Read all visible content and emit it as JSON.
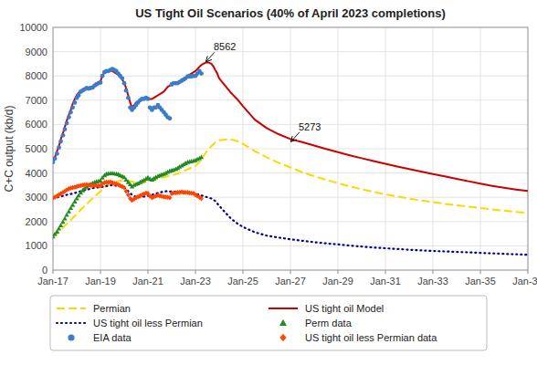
{
  "chart_data": {
    "type": "line",
    "title": "US Tight Oil Scenarios (40% of April 2023 completions)",
    "y_label": "C+C output (kb/d)",
    "xlim": [
      2017.0,
      2037.0
    ],
    "ylim": [
      0,
      10000
    ],
    "yticks": [
      0,
      1000,
      2000,
      3000,
      4000,
      5000,
      6000,
      7000,
      8000,
      9000,
      10000
    ],
    "xticks": [
      {
        "value": 2017,
        "label": "Jan-17"
      },
      {
        "value": 2019,
        "label": "Jan-19"
      },
      {
        "value": 2021,
        "label": "Jan-21"
      },
      {
        "value": 2023,
        "label": "Jan-23"
      },
      {
        "value": 2025,
        "label": "Jan-25"
      },
      {
        "value": 2027,
        "label": "Jan-27"
      },
      {
        "value": 2029,
        "label": "Jan-29"
      },
      {
        "value": 2031,
        "label": "Jan-31"
      },
      {
        "value": 2033,
        "label": "Jan-33"
      },
      {
        "value": 2035,
        "label": "Jan-35"
      },
      {
        "value": 2037,
        "label": "Jan-37"
      }
    ],
    "grid": true,
    "legend": "bottom",
    "series": [
      {
        "name": "Permian",
        "type": "line",
        "line_style": "dashed",
        "color": "#FFD700",
        "x": [
          2017.0,
          2017.17,
          2017.33,
          2017.5,
          2017.67,
          2017.83,
          2018.0,
          2018.17,
          2018.33,
          2018.5,
          2018.67,
          2018.83,
          2019.0,
          2019.17,
          2019.33,
          2019.5,
          2019.67,
          2019.83,
          2020.0,
          2020.17,
          2020.33,
          2020.5,
          2020.67,
          2020.83,
          2021.0,
          2021.17,
          2021.33,
          2021.5,
          2021.67,
          2021.83,
          2022.0,
          2022.17,
          2022.33,
          2022.5,
          2022.67,
          2022.83,
          2023.0,
          2023.17,
          2023.33,
          2023.5,
          2023.67,
          2023.83,
          2024.0,
          2024.25,
          2024.5,
          2024.75,
          2025.0,
          2025.5,
          2026.0,
          2026.5,
          2027.0,
          2027.5,
          2028.0,
          2028.5,
          2029.0,
          2029.5,
          2030.0,
          2030.5,
          2031.0,
          2031.5,
          2032.0,
          2032.5,
          2033.0,
          2033.5,
          2034.0,
          2034.5,
          2035.0,
          2035.5,
          2036.0,
          2036.5,
          2037.0
        ],
        "values": [
          1380,
          1500,
          1650,
          1820,
          1990,
          2150,
          2310,
          2480,
          2640,
          2800,
          2960,
          3100,
          3240,
          3400,
          3520,
          3600,
          3650,
          3680,
          3700,
          3680,
          3650,
          3620,
          3600,
          3620,
          3650,
          3700,
          3750,
          3790,
          3820,
          3860,
          3900,
          3950,
          4010,
          4080,
          4150,
          4220,
          4290,
          4450,
          4680,
          4920,
          5100,
          5250,
          5350,
          5380,
          5380,
          5320,
          5200,
          4900,
          4650,
          4420,
          4230,
          4030,
          3870,
          3720,
          3580,
          3450,
          3330,
          3220,
          3120,
          3030,
          2950,
          2870,
          2800,
          2730,
          2670,
          2610,
          2555,
          2500,
          2450,
          2400,
          2350
        ]
      },
      {
        "name": "US tight oil Model",
        "type": "line",
        "line_style": "solid",
        "color": "#CC0000",
        "x": [
          2017.0,
          2017.08,
          2017.17,
          2017.25,
          2017.33,
          2017.42,
          2017.5,
          2017.58,
          2017.67,
          2017.75,
          2017.83,
          2017.92,
          2018.0,
          2018.08,
          2018.17,
          2018.25,
          2018.33,
          2018.42,
          2018.5,
          2018.58,
          2018.67,
          2018.75,
          2018.83,
          2018.92,
          2019.0,
          2019.08,
          2019.17,
          2019.25,
          2019.33,
          2019.42,
          2019.5,
          2019.58,
          2019.67,
          2019.75,
          2019.83,
          2019.92,
          2020.0,
          2020.08,
          2020.17,
          2020.25,
          2020.33,
          2020.42,
          2020.5,
          2020.58,
          2020.67,
          2020.75,
          2020.83,
          2020.92,
          2021.0,
          2021.08,
          2021.17,
          2021.25,
          2021.33,
          2021.42,
          2021.5,
          2021.58,
          2021.67,
          2021.75,
          2021.83,
          2021.92,
          2022.0,
          2022.08,
          2022.17,
          2022.25,
          2022.33,
          2022.42,
          2022.5,
          2022.58,
          2022.67,
          2022.75,
          2022.83,
          2022.92,
          2023.0,
          2023.08,
          2023.17,
          2023.25,
          2023.33,
          2023.42,
          2023.5,
          2023.58,
          2023.67,
          2023.75,
          2023.83,
          2023.92,
          2024.0,
          2024.25,
          2024.5,
          2024.75,
          2025.0,
          2025.5,
          2026.0,
          2026.5,
          2027.0,
          2027.5,
          2028.0,
          2028.5,
          2029.0,
          2029.5,
          2030.0,
          2030.5,
          2031.0,
          2031.5,
          2032.0,
          2032.5,
          2033.0,
          2033.5,
          2034.0,
          2034.5,
          2035.0,
          2035.5,
          2036.0,
          2036.5,
          2037.0
        ],
        "values": [
          4450,
          4650,
          4900,
          5100,
          5400,
          5650,
          5900,
          6150,
          6400,
          6600,
          6850,
          7050,
          7200,
          7300,
          7380,
          7450,
          7480,
          7500,
          7480,
          7500,
          7520,
          7600,
          7700,
          7750,
          7780,
          8000,
          8150,
          8200,
          8220,
          8230,
          8200,
          8150,
          8100,
          8050,
          7950,
          7850,
          7700,
          7500,
          7200,
          6900,
          6700,
          6800,
          6900,
          6950,
          7000,
          7050,
          7050,
          7100,
          7100,
          7050,
          7050,
          7100,
          7150,
          7200,
          7250,
          7300,
          7350,
          7450,
          7550,
          7600,
          7650,
          7680,
          7700,
          7720,
          7750,
          7800,
          7850,
          7900,
          7980,
          8050,
          8100,
          8150,
          8200,
          8280,
          8380,
          8450,
          8500,
          8540,
          8562,
          8540,
          8500,
          8400,
          8250,
          8100,
          7900,
          7600,
          7300,
          7050,
          6750,
          6200,
          5850,
          5600,
          5400,
          5273,
          5130,
          4990,
          4860,
          4730,
          4610,
          4490,
          4380,
          4270,
          4160,
          4060,
          3960,
          3860,
          3760,
          3660,
          3560,
          3470,
          3390,
          3320,
          3260
        ]
      },
      {
        "name": "US tight oil less Permian",
        "type": "line",
        "line_style": "dotted",
        "color": "#00008B",
        "x": [
          2017.0,
          2017.17,
          2017.33,
          2017.5,
          2017.67,
          2017.83,
          2018.0,
          2018.17,
          2018.33,
          2018.5,
          2018.67,
          2018.83,
          2019.0,
          2019.17,
          2019.33,
          2019.5,
          2019.67,
          2019.83,
          2020.0,
          2020.17,
          2020.33,
          2020.5,
          2020.67,
          2020.83,
          2021.0,
          2021.17,
          2021.33,
          2021.5,
          2021.67,
          2021.83,
          2022.0,
          2022.17,
          2022.33,
          2022.5,
          2022.67,
          2022.83,
          2023.0,
          2023.17,
          2023.33,
          2023.5,
          2023.67,
          2023.83,
          2024.0,
          2024.25,
          2024.5,
          2024.75,
          2025.0,
          2025.5,
          2026.0,
          2026.5,
          2027.0,
          2027.5,
          2028.0,
          2028.5,
          2029.0,
          2029.5,
          2030.0,
          2030.5,
          2031.0,
          2031.5,
          2032.0,
          2032.5,
          2033.0,
          2033.5,
          2034.0,
          2034.5,
          2035.0,
          2035.5,
          2036.0,
          2036.5,
          2037.0
        ],
        "values": [
          2970,
          3000,
          3030,
          3080,
          3120,
          3150,
          3200,
          3250,
          3290,
          3330,
          3380,
          3400,
          3420,
          3450,
          3480,
          3500,
          3480,
          3450,
          3400,
          3250,
          3100,
          3000,
          3000,
          3030,
          3060,
          3100,
          3150,
          3200,
          3230,
          3260,
          3230,
          3230,
          3230,
          3200,
          3200,
          3180,
          3150,
          3100,
          3050,
          3000,
          2950,
          2850,
          2650,
          2380,
          2120,
          1930,
          1780,
          1560,
          1420,
          1340,
          1270,
          1210,
          1150,
          1100,
          1060,
          1010,
          970,
          930,
          900,
          870,
          840,
          810,
          790,
          770,
          750,
          730,
          710,
          690,
          670,
          650,
          630
        ]
      },
      {
        "name": "Perm data",
        "type": "scatter",
        "marker": "triangle",
        "color": "#228B22",
        "x": [
          2017.0,
          2017.08,
          2017.17,
          2017.25,
          2017.33,
          2017.42,
          2017.5,
          2017.58,
          2017.67,
          2017.75,
          2017.83,
          2017.92,
          2018.0,
          2018.08,
          2018.17,
          2018.25,
          2018.33,
          2018.42,
          2018.5,
          2018.58,
          2018.67,
          2018.75,
          2018.83,
          2018.92,
          2019.0,
          2019.08,
          2019.17,
          2019.25,
          2019.33,
          2019.42,
          2019.5,
          2019.58,
          2019.67,
          2019.75,
          2019.83,
          2019.92,
          2020.0,
          2020.08,
          2020.17,
          2020.25,
          2020.33,
          2020.42,
          2020.5,
          2020.58,
          2020.67,
          2020.75,
          2020.83,
          2020.92,
          2021.0,
          2021.08,
          2021.17,
          2021.25,
          2021.33,
          2021.42,
          2021.5,
          2021.58,
          2021.67,
          2021.75,
          2021.83,
          2021.92,
          2022.0,
          2022.08,
          2022.17,
          2022.25,
          2022.33,
          2022.42,
          2022.5,
          2022.58,
          2022.67,
          2022.75,
          2022.83,
          2022.92,
          2023.0,
          2023.08,
          2023.17,
          2023.25
        ],
        "values": [
          1380,
          1480,
          1580,
          1710,
          1840,
          1980,
          2120,
          2270,
          2410,
          2550,
          2680,
          2820,
          2950,
          3070,
          3180,
          3280,
          3360,
          3430,
          3490,
          3540,
          3580,
          3610,
          3640,
          3660,
          3680,
          3800,
          3900,
          3950,
          3970,
          3980,
          3980,
          3970,
          3960,
          3940,
          3900,
          3860,
          3820,
          3720,
          3620,
          3530,
          3440,
          3500,
          3540,
          3570,
          3620,
          3660,
          3700,
          3760,
          3810,
          3750,
          3720,
          3770,
          3820,
          3870,
          3900,
          3930,
          3950,
          3990,
          4040,
          4080,
          4100,
          4120,
          4160,
          4200,
          4250,
          4300,
          4350,
          4400,
          4440,
          4460,
          4480,
          4500,
          4520,
          4560,
          4600,
          4650
        ]
      },
      {
        "name": "EIA data",
        "type": "scatter",
        "marker": "circle",
        "color": "#3D7CC9",
        "x": [
          2017.0,
          2017.08,
          2017.17,
          2017.25,
          2017.33,
          2017.42,
          2017.5,
          2017.58,
          2017.67,
          2017.75,
          2017.83,
          2017.92,
          2018.0,
          2018.08,
          2018.17,
          2018.25,
          2018.33,
          2018.42,
          2018.5,
          2018.58,
          2018.67,
          2018.75,
          2018.83,
          2018.92,
          2019.0,
          2019.08,
          2019.17,
          2019.25,
          2019.33,
          2019.42,
          2019.5,
          2019.58,
          2019.67,
          2019.75,
          2019.83,
          2019.92,
          2020.0,
          2020.08,
          2020.17,
          2020.25,
          2020.33,
          2020.42,
          2020.5,
          2020.58,
          2020.67,
          2020.75,
          2020.83,
          2020.92,
          2021.0,
          2021.08,
          2021.17,
          2021.25,
          2021.33,
          2021.42,
          2021.5,
          2021.58,
          2021.67,
          2021.75,
          2021.83,
          2021.92,
          2022.0,
          2022.08,
          2022.17,
          2022.25,
          2022.33,
          2022.42,
          2022.5,
          2022.58,
          2022.67,
          2022.75,
          2022.83,
          2022.92,
          2023.0,
          2023.08,
          2023.17,
          2023.25
        ],
        "values": [
          4450,
          4600,
          4800,
          5050,
          5300,
          5550,
          5800,
          6050,
          6300,
          6500,
          6700,
          6900,
          7100,
          7200,
          7350,
          7400,
          7450,
          7500,
          7480,
          7500,
          7520,
          7600,
          7650,
          7700,
          7730,
          8000,
          8150,
          8200,
          8200,
          8250,
          8280,
          8250,
          8200,
          8100,
          8000,
          7900,
          7700,
          7400,
          7100,
          6700,
          6600,
          6700,
          6800,
          6900,
          7000,
          7050,
          7050,
          7100,
          7050,
          6700,
          6600,
          6700,
          6700,
          6800,
          6700,
          6600,
          6500,
          6400,
          6300,
          6250,
          7650,
          7700,
          7700,
          7700,
          7750,
          7800,
          7850,
          7900,
          7980,
          7980,
          7980,
          8000,
          8000,
          8100,
          8200,
          8100
        ]
      },
      {
        "name": "US tight oil less Permian data",
        "type": "scatter",
        "marker": "diamond",
        "color": "#FF4500",
        "x": [
          2017.0,
          2017.08,
          2017.17,
          2017.25,
          2017.33,
          2017.42,
          2017.5,
          2017.58,
          2017.67,
          2017.75,
          2017.83,
          2017.92,
          2018.0,
          2018.08,
          2018.17,
          2018.25,
          2018.33,
          2018.42,
          2018.5,
          2018.58,
          2018.67,
          2018.75,
          2018.83,
          2018.92,
          2019.0,
          2019.08,
          2019.17,
          2019.25,
          2019.33,
          2019.42,
          2019.5,
          2019.58,
          2019.67,
          2019.75,
          2019.83,
          2019.92,
          2020.0,
          2020.08,
          2020.17,
          2020.25,
          2020.33,
          2020.42,
          2020.5,
          2020.58,
          2020.67,
          2020.75,
          2020.83,
          2020.92,
          2021.0,
          2021.08,
          2021.17,
          2021.25,
          2021.33,
          2021.42,
          2021.5,
          2021.58,
          2021.67,
          2021.75,
          2021.83,
          2021.92,
          2022.0,
          2022.08,
          2022.17,
          2022.25,
          2022.33,
          2022.42,
          2022.5,
          2022.58,
          2022.67,
          2022.75,
          2022.83,
          2022.92,
          2023.0,
          2023.08,
          2023.17,
          2023.25
        ],
        "values": [
          2970,
          3000,
          3050,
          3100,
          3150,
          3200,
          3250,
          3300,
          3350,
          3380,
          3400,
          3420,
          3440,
          3460,
          3480,
          3500,
          3510,
          3520,
          3500,
          3490,
          3480,
          3480,
          3480,
          3480,
          3470,
          3550,
          3600,
          3620,
          3620,
          3630,
          3600,
          3570,
          3550,
          3520,
          3480,
          3440,
          3400,
          3250,
          3100,
          2950,
          2880,
          2930,
          2980,
          3020,
          3060,
          3100,
          3130,
          3170,
          3160,
          3050,
          2980,
          3020,
          3050,
          3080,
          3060,
          3040,
          3020,
          3010,
          3000,
          2980,
          3150,
          3180,
          3180,
          3200,
          3200,
          3220,
          3200,
          3200,
          3200,
          3180,
          3170,
          3160,
          3100,
          3050,
          3000,
          2950
        ]
      }
    ],
    "annotations": [
      {
        "text": "8562",
        "x": 2023.42,
        "y": 8562
      },
      {
        "text": "5273",
        "x": 2027.0,
        "y": 5273
      }
    ]
  }
}
